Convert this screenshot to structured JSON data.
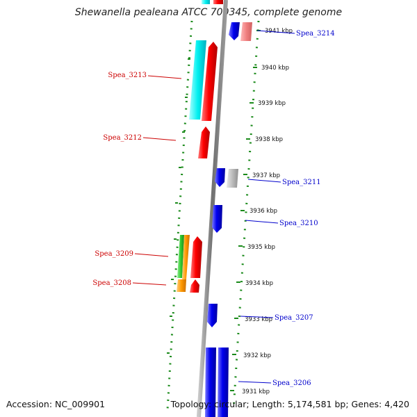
{
  "title": "Shewanella pealeana ATCC 700345, complete genome",
  "footer": {
    "accession": "Accession: NC_009901",
    "summary": "Topology: circular; Length: 5,174,581 bp; Genes: 4,420"
  },
  "colors": {
    "forward_cds": "#ff0000",
    "reverse_cds": "#0000ee",
    "backbone": "#888888",
    "tick_green": "#1a8a1a",
    "label_forward": "#cc0000",
    "label_reverse": "#0000cc"
  },
  "scale_labels": [
    "3941 kbp",
    "3940 kbp",
    "3939 kbp",
    "3938 kbp",
    "3937 kbp",
    "3936 kbp",
    "3935 kbp",
    "3934 kbp",
    "3933 kbp",
    "3932 kbp",
    "3931 kbp"
  ],
  "gene_labels": {
    "spea_3214": "Spea_3214",
    "spea_3213": "Spea_3213",
    "spea_3212": "Spea_3212",
    "spea_3211": "Spea_3211",
    "spea_3210": "Spea_3210",
    "spea_3209": "Spea_3209",
    "spea_3208": "Spea_3208",
    "spea_3207": "Spea_3207",
    "spea_3206": "Spea_3206"
  }
}
